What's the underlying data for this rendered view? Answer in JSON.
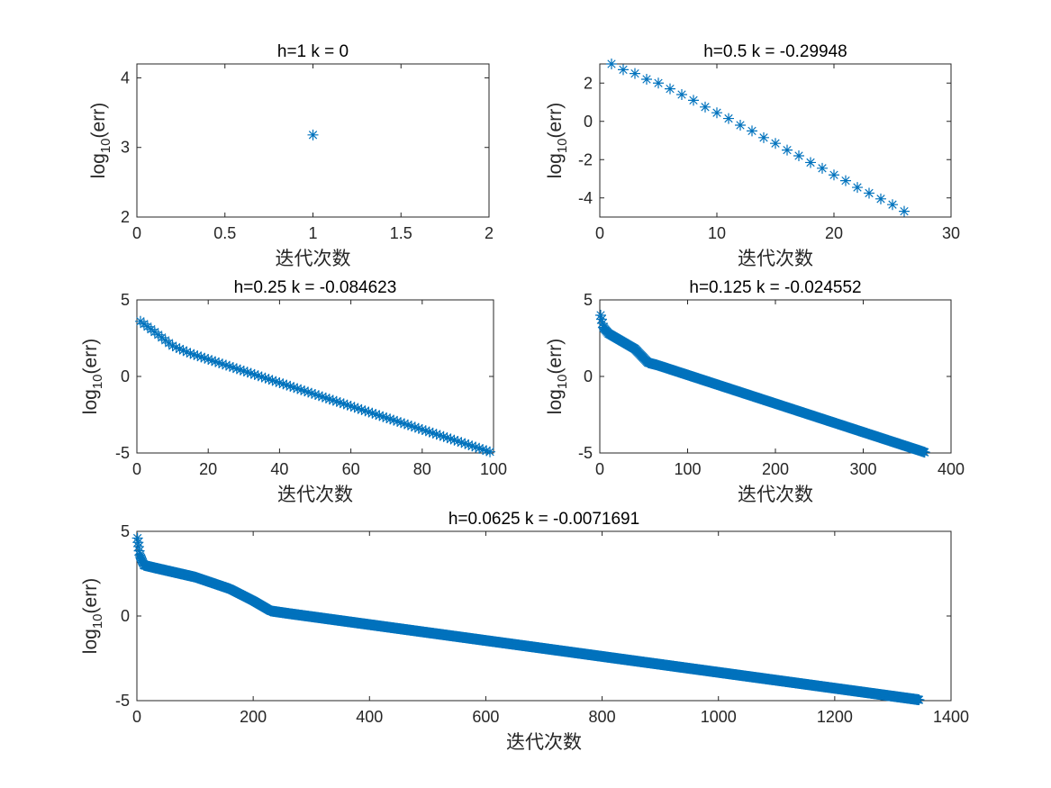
{
  "figure": {
    "marker_color": "#0072BD",
    "axes_color": "#262626",
    "ylabel_base": "log",
    "ylabel_sub": "10",
    "ylabel_tail": "(err)"
  },
  "chart_data": [
    {
      "type": "scatter",
      "title": "h=1 k = 0",
      "xlabel": "迭代次数",
      "ylabel": "log10(err)",
      "xlim": [
        0,
        2
      ],
      "ylim": [
        2,
        4.2
      ],
      "xticks": [
        0,
        0.5,
        1,
        1.5,
        2
      ],
      "xtick_labels": [
        "0",
        "0.5",
        "1",
        "1.5",
        "2"
      ],
      "yticks": [
        2,
        3,
        4
      ],
      "ytick_labels": [
        "2",
        "3",
        "4"
      ],
      "marker": "asterisk",
      "n_points": 1,
      "points": [
        [
          1,
          3.18
        ]
      ],
      "grid": false
    },
    {
      "type": "scatter",
      "title": "h=0.5 k = -0.29948",
      "xlabel": "迭代次数",
      "ylabel": "log10(err)",
      "xlim": [
        0,
        30
      ],
      "ylim": [
        -5,
        3
      ],
      "xticks": [
        0,
        10,
        20,
        30
      ],
      "xtick_labels": [
        "0",
        "10",
        "20",
        "30"
      ],
      "yticks": [
        -4,
        -2,
        0,
        2
      ],
      "ytick_labels": [
        "-4",
        "-2",
        "0",
        "2"
      ],
      "marker": "asterisk",
      "n_points": 26,
      "points": [
        [
          1,
          3.0
        ],
        [
          2,
          2.7
        ],
        [
          3,
          2.5
        ],
        [
          4,
          2.2
        ],
        [
          5,
          2.0
        ],
        [
          6,
          1.7
        ],
        [
          7,
          1.4
        ],
        [
          8,
          1.1
        ],
        [
          9,
          0.75
        ],
        [
          10,
          0.45
        ],
        [
          11,
          0.15
        ],
        [
          12,
          -0.2
        ],
        [
          13,
          -0.5
        ],
        [
          14,
          -0.85
        ],
        [
          15,
          -1.15
        ],
        [
          16,
          -1.5
        ],
        [
          17,
          -1.8
        ],
        [
          18,
          -2.15
        ],
        [
          19,
          -2.45
        ],
        [
          20,
          -2.8
        ],
        [
          21,
          -3.1
        ],
        [
          22,
          -3.45
        ],
        [
          23,
          -3.75
        ],
        [
          24,
          -4.05
        ],
        [
          25,
          -4.35
        ],
        [
          26,
          -4.7
        ]
      ],
      "grid": false
    },
    {
      "type": "scatter",
      "title": "h=0.25 k = -0.084623",
      "xlabel": "迭代次数",
      "ylabel": "log10(err)",
      "xlim": [
        0,
        100
      ],
      "ylim": [
        -5,
        5
      ],
      "xticks": [
        0,
        20,
        40,
        60,
        80,
        100
      ],
      "xtick_labels": [
        "0",
        "20",
        "40",
        "60",
        "80",
        "100"
      ],
      "yticks": [
        -5,
        0,
        5
      ],
      "ytick_labels": [
        "-5",
        "0",
        "5"
      ],
      "marker": "asterisk",
      "n_points": 99,
      "anchors": [
        [
          1,
          3.6
        ],
        [
          5,
          2.9
        ],
        [
          10,
          2.0
        ],
        [
          15,
          1.5
        ],
        [
          100,
          -5.0
        ]
      ],
      "grid": false
    },
    {
      "type": "scatter",
      "title": "h=0.125 k = -0.024552",
      "xlabel": "迭代次数",
      "ylabel": "log10(err)",
      "xlim": [
        0,
        400
      ],
      "ylim": [
        -5,
        5
      ],
      "xticks": [
        0,
        100,
        200,
        300,
        400
      ],
      "xtick_labels": [
        "0",
        "100",
        "200",
        "300",
        "400"
      ],
      "yticks": [
        -5,
        0,
        5
      ],
      "ytick_labels": [
        "-5",
        "0",
        "5"
      ],
      "marker": "asterisk",
      "n_points": 370,
      "anchors": [
        [
          1,
          4.0
        ],
        [
          4,
          3.2
        ],
        [
          10,
          2.8
        ],
        [
          25,
          2.3
        ],
        [
          40,
          1.8
        ],
        [
          55,
          0.9
        ],
        [
          65,
          0.75
        ],
        [
          370,
          -4.95
        ]
      ],
      "grid": false
    },
    {
      "type": "scatter",
      "title": "h=0.0625 k = -0.0071691",
      "xlabel": "迭代次数",
      "ylabel": "log10(err)",
      "xlim": [
        0,
        1400
      ],
      "ylim": [
        -5,
        5
      ],
      "xticks": [
        0,
        200,
        400,
        600,
        800,
        1000,
        1200,
        1400
      ],
      "xtick_labels": [
        "0",
        "200",
        "400",
        "600",
        "800",
        "1000",
        "1200",
        "1400"
      ],
      "yticks": [
        -5,
        0,
        5
      ],
      "ytick_labels": [
        "-5",
        "0",
        "5"
      ],
      "marker": "asterisk",
      "n_points": 1345,
      "anchors": [
        [
          1,
          4.6
        ],
        [
          5,
          3.6
        ],
        [
          12,
          3.0
        ],
        [
          30,
          2.85
        ],
        [
          100,
          2.3
        ],
        [
          160,
          1.6
        ],
        [
          200,
          0.9
        ],
        [
          230,
          0.3
        ],
        [
          260,
          0.15
        ],
        [
          1345,
          -4.95
        ]
      ],
      "grid": false
    }
  ]
}
